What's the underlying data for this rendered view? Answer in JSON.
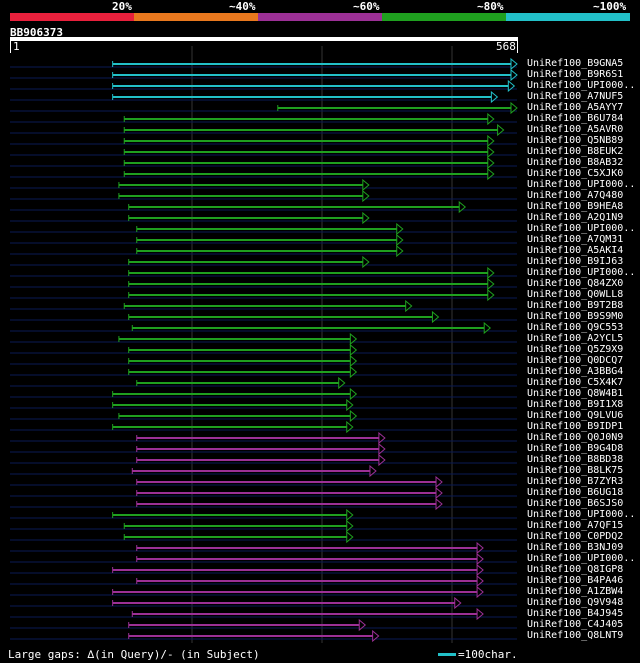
{
  "legend": {
    "labels": [
      "20%",
      "~40%",
      "~60%",
      "~80%",
      "~100%"
    ],
    "colors": [
      "#e8203c",
      "#e8781e",
      "#9c3096",
      "#1fa01f",
      "#22c0c8"
    ]
  },
  "query": {
    "id": "BB906373",
    "start_label": "1",
    "end_label": "568",
    "length": 568
  },
  "hits": [
    {
      "label": "UniRef100_B9GNA5",
      "color": "cyan",
      "s": 115,
      "e": 568
    },
    {
      "label": "UniRef100_B9R6S1",
      "color": "cyan",
      "s": 115,
      "e": 568
    },
    {
      "label": "UniRef100_UPI000..",
      "color": "cyan",
      "s": 115,
      "e": 565
    },
    {
      "label": "UniRef100_A7NUF5",
      "color": "cyan",
      "s": 115,
      "e": 546
    },
    {
      "label": "UniRef100_A5AYY7",
      "color": "green",
      "s": 300,
      "e": 568
    },
    {
      "label": "UniRef100_B6U784",
      "color": "green",
      "s": 128,
      "e": 542
    },
    {
      "label": "UniRef100_A5AVR0",
      "color": "green",
      "s": 128,
      "e": 553
    },
    {
      "label": "UniRef100_Q5NB89",
      "color": "green",
      "s": 128,
      "e": 542
    },
    {
      "label": "UniRef100_B8EUK2",
      "color": "green",
      "s": 128,
      "e": 542
    },
    {
      "label": "UniRef100_B8AB32",
      "color": "green",
      "s": 128,
      "e": 542
    },
    {
      "label": "UniRef100_C5XJK0",
      "color": "green",
      "s": 128,
      "e": 542
    },
    {
      "label": "UniRef100_UPI000..",
      "color": "green",
      "s": 122,
      "e": 402
    },
    {
      "label": "UniRef100_A7Q480",
      "color": "green",
      "s": 122,
      "e": 402
    },
    {
      "label": "UniRef100_B9HEA8",
      "color": "green",
      "s": 133,
      "e": 510
    },
    {
      "label": "UniRef100_A2Q1N9",
      "color": "green",
      "s": 133,
      "e": 402
    },
    {
      "label": "UniRef100_UPI000..",
      "color": "green",
      "s": 142,
      "e": 440
    },
    {
      "label": "UniRef100_A7QM31",
      "color": "green",
      "s": 142,
      "e": 440
    },
    {
      "label": "UniRef100_A5AKI4",
      "color": "green",
      "s": 142,
      "e": 440
    },
    {
      "label": "UniRef100_B9IJ63",
      "color": "green",
      "s": 133,
      "e": 402
    },
    {
      "label": "UniRef100_UPI000..",
      "color": "green",
      "s": 133,
      "e": 542
    },
    {
      "label": "UniRef100_Q84ZX0",
      "color": "green",
      "s": 133,
      "e": 542
    },
    {
      "label": "UniRef100_Q0WLL8",
      "color": "green",
      "s": 133,
      "e": 542
    },
    {
      "label": "UniRef100_B9T2B8",
      "color": "green",
      "s": 128,
      "e": 450
    },
    {
      "label": "UniRef100_B9S9M0",
      "color": "green",
      "s": 133,
      "e": 480
    },
    {
      "label": "UniRef100_Q9C553",
      "color": "green",
      "s": 137,
      "e": 538
    },
    {
      "label": "UniRef100_A2YCL5",
      "color": "green",
      "s": 122,
      "e": 388
    },
    {
      "label": "UniRef100_Q5Z9X9",
      "color": "green",
      "s": 133,
      "e": 388
    },
    {
      "label": "UniRef100_Q0DCQ7",
      "color": "green",
      "s": 133,
      "e": 388
    },
    {
      "label": "UniRef100_A3BBG4",
      "color": "green",
      "s": 133,
      "e": 388
    },
    {
      "label": "UniRef100_C5X4K7",
      "color": "green",
      "s": 142,
      "e": 375
    },
    {
      "label": "UniRef100_Q8W4B1",
      "color": "green",
      "s": 115,
      "e": 388
    },
    {
      "label": "UniRef100_B9I1X8",
      "color": "green",
      "s": 115,
      "e": 384
    },
    {
      "label": "UniRef100_Q9LVU6",
      "color": "green",
      "s": 122,
      "e": 388
    },
    {
      "label": "UniRef100_B9IDP1",
      "color": "green",
      "s": 115,
      "e": 384
    },
    {
      "label": "UniRef100_Q0J0N9",
      "color": "purple",
      "s": 142,
      "e": 420
    },
    {
      "label": "UniRef100_B9G4D8",
      "color": "purple",
      "s": 142,
      "e": 420
    },
    {
      "label": "UniRef100_B8BD38",
      "color": "purple",
      "s": 142,
      "e": 420
    },
    {
      "label": "UniRef100_B8LK75",
      "color": "purple",
      "s": 137,
      "e": 410
    },
    {
      "label": "UniRef100_B7ZYR3",
      "color": "purple",
      "s": 142,
      "e": 484
    },
    {
      "label": "UniRef100_B6UG18",
      "color": "purple",
      "s": 142,
      "e": 484
    },
    {
      "label": "UniRef100_B6SJS0",
      "color": "purple",
      "s": 142,
      "e": 484
    },
    {
      "label": "UniRef100_UPI000..",
      "color": "green",
      "s": 115,
      "e": 384
    },
    {
      "label": "UniRef100_A7QF15",
      "color": "green",
      "s": 128,
      "e": 384
    },
    {
      "label": "UniRef100_C0PDQ2",
      "color": "green",
      "s": 128,
      "e": 384
    },
    {
      "label": "UniRef100_B3NJ09",
      "color": "purple",
      "s": 142,
      "e": 530
    },
    {
      "label": "UniRef100_UPI000..",
      "color": "purple",
      "s": 142,
      "e": 530
    },
    {
      "label": "UniRef100_Q8IGP8",
      "color": "purple",
      "s": 115,
      "e": 530
    },
    {
      "label": "UniRef100_B4PA46",
      "color": "purple",
      "s": 142,
      "e": 530
    },
    {
      "label": "UniRef100_A1ZBW4",
      "color": "purple",
      "s": 115,
      "e": 530
    },
    {
      "label": "UniRef100_Q9V948",
      "color": "purple",
      "s": 115,
      "e": 505
    },
    {
      "label": "UniRef100_B4J945",
      "color": "purple",
      "s": 137,
      "e": 530
    },
    {
      "label": "UniRef100_C4J405",
      "color": "purple",
      "s": 133,
      "e": 398
    },
    {
      "label": "UniRef100_Q8LNT9",
      "color": "purple",
      "s": 133,
      "e": 413
    }
  ],
  "footer": {
    "gap_note": "Large gaps: ∆(in Query)/- (in Subject)",
    "scale_label": "=100char."
  }
}
